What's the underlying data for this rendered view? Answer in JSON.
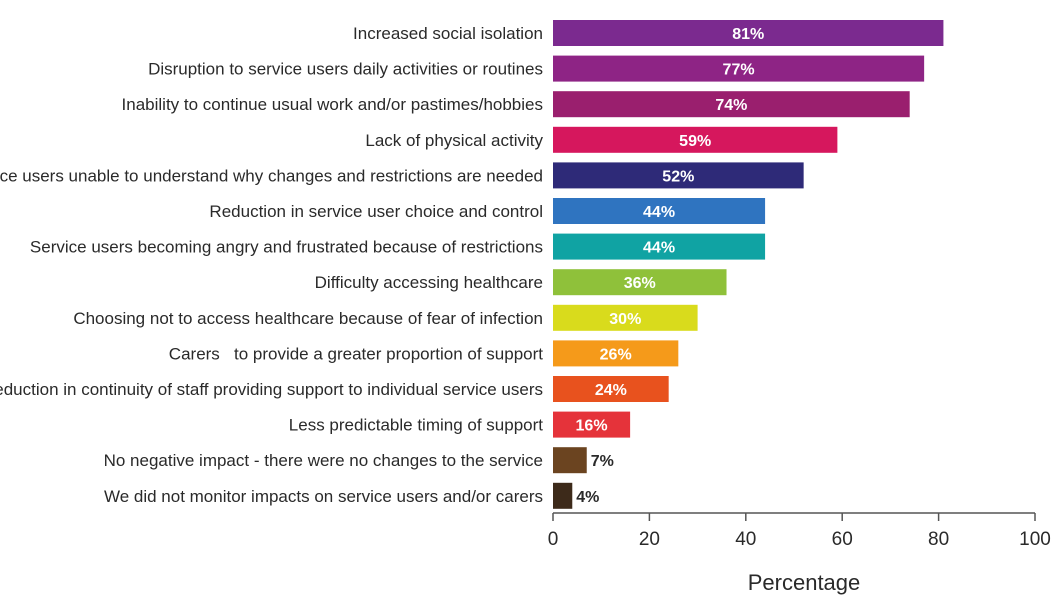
{
  "chart_data": {
    "type": "bar",
    "orientation": "horizontal",
    "categories": [
      "Increased social isolation",
      "Disruption to service users daily activities or routines",
      "Inability to continue usual work and/or pastimes/hobbies",
      "Lack of physical activity",
      "Service users unable to understand why changes and restrictions are needed",
      "Reduction in service user choice and control",
      "Service users becoming angry and frustrated because of restrictions",
      "Difficulty accessing healthcare",
      "Choosing not to access healthcare because of fear of infection",
      "Carers   to provide a greater proportion of support",
      "Reduction in continuity of staff providing support to individual service users",
      "Less predictable timing of support",
      "No negative impact - there were no changes to the service",
      "We did not monitor impacts on service users and/or carers"
    ],
    "values": [
      81,
      77,
      74,
      59,
      52,
      44,
      44,
      36,
      30,
      26,
      24,
      16,
      7,
      4
    ],
    "value_labels": [
      "81%",
      "77%",
      "74%",
      "59%",
      "52%",
      "44%",
      "44%",
      "36%",
      "30%",
      "26%",
      "24%",
      "16%",
      "7%",
      "4%"
    ],
    "colors": [
      "#7b2a8f",
      "#8e2485",
      "#9a1f6e",
      "#d6175d",
      "#2e2a78",
      "#2f74c0",
      "#10a3a3",
      "#8fc13a",
      "#d9db1c",
      "#f59a1a",
      "#e8521e",
      "#e5333a",
      "#6b4420",
      "#3d2a1a"
    ],
    "xlabel": "Percentage",
    "ylabel": "",
    "title": "",
    "xlim": [
      0,
      100
    ],
    "xticks": [
      0,
      20,
      40,
      60,
      80,
      100
    ],
    "xtick_labels": [
      "0",
      "20",
      "40",
      "60",
      "80",
      "100"
    ],
    "grid": false
  }
}
